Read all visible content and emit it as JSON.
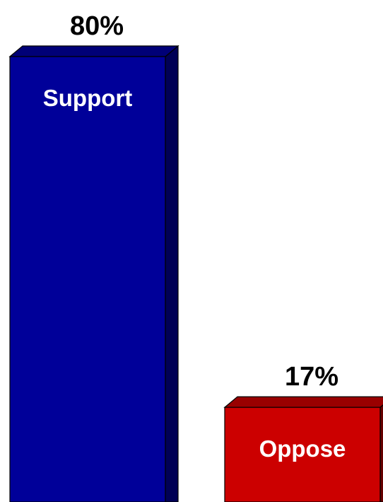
{
  "chart_data": {
    "type": "bar",
    "style": "3d",
    "categories": [
      "Support",
      "Oppose"
    ],
    "values": [
      80,
      17
    ],
    "value_labels": [
      "80%",
      "17%"
    ],
    "colors": [
      "#000099",
      "#cc0000"
    ],
    "side_colors": [
      "#000055",
      "#660000"
    ],
    "top_colors": [
      "#000077",
      "#990000"
    ],
    "ylim": [
      0,
      80
    ],
    "grid": false,
    "legend": "none",
    "title": "",
    "xlabel": "",
    "ylabel": ""
  }
}
